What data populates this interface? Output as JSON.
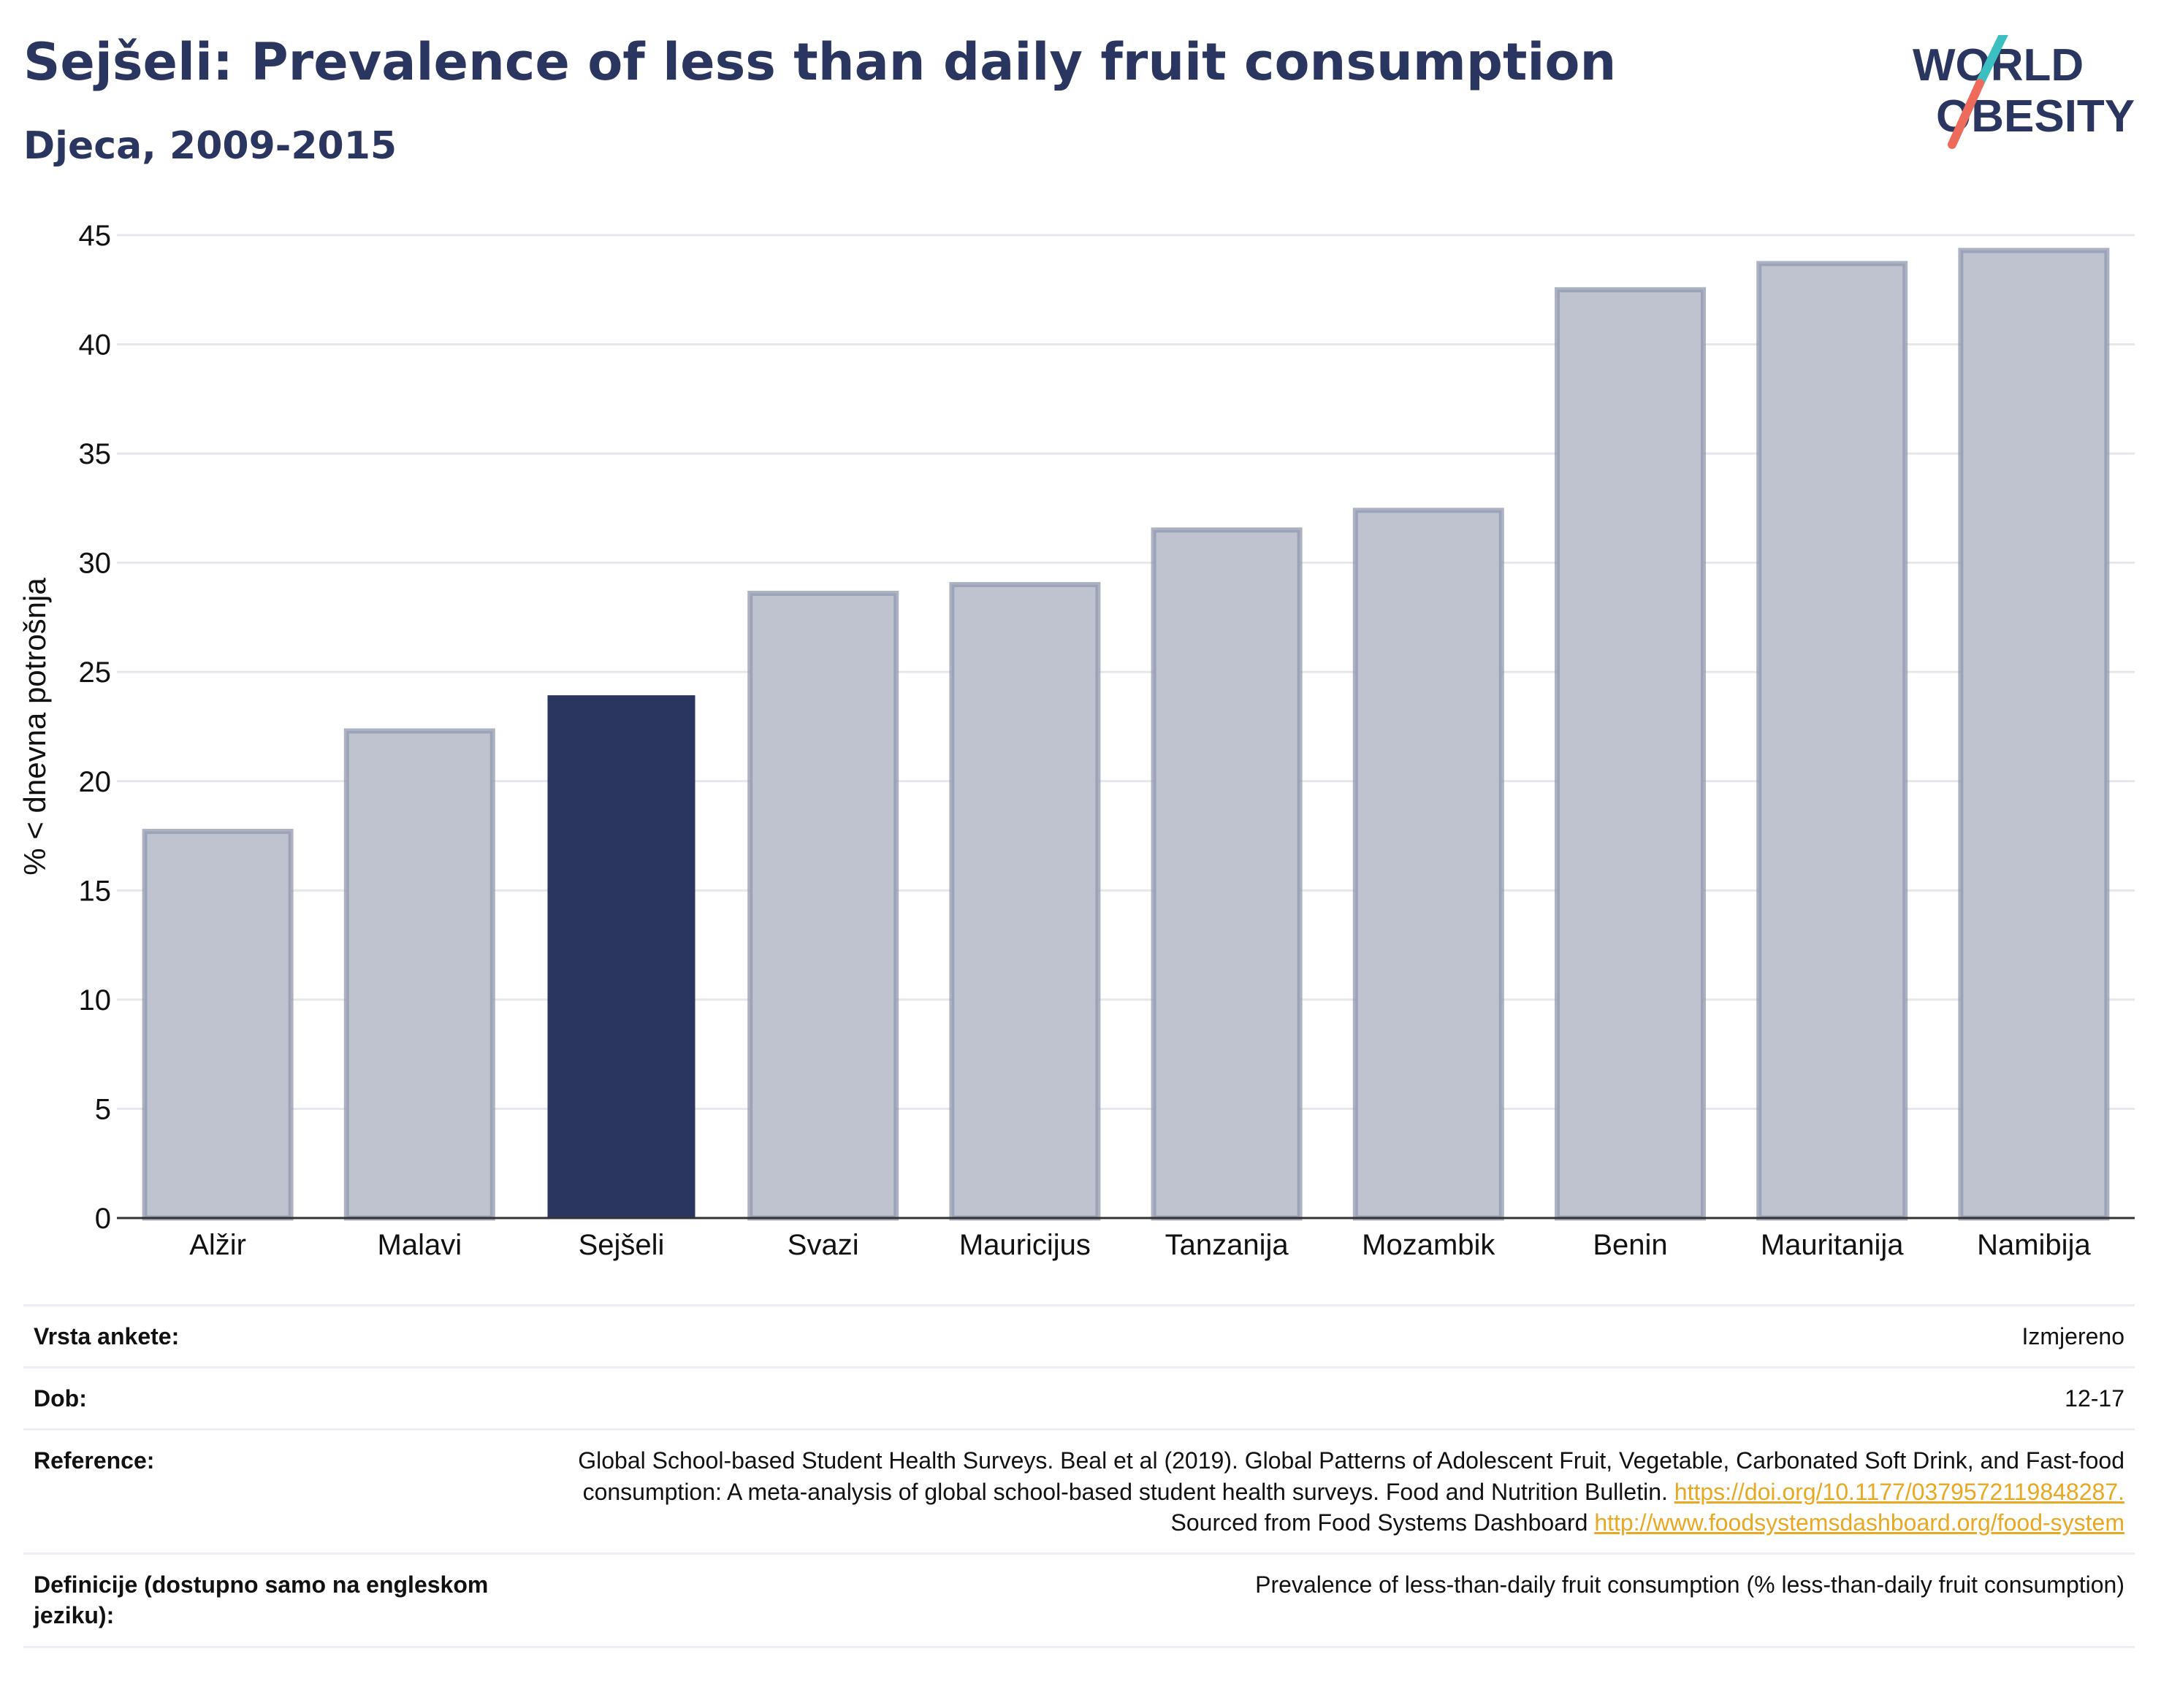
{
  "header": {
    "title": "Sejšeli: Prevalence of less than daily fruit consumption",
    "subtitle": "Djeca, 2009-2015",
    "logo_line1": "WORLD",
    "logo_line2": "OBESITY"
  },
  "colors": {
    "highlight": "#2a365f",
    "bar_fill": "#bfc3cf",
    "bar_stroke": "#9298ae",
    "grid": "#e6e7ec",
    "axis": "#333333",
    "logo_teal": "#3cbfc1",
    "logo_coral": "#ee6a5a",
    "link": "#e8a822"
  },
  "chart_data": {
    "type": "bar",
    "categories": [
      "Alžir",
      "Malavi",
      "Sejšeli",
      "Svazi",
      "Mauricijus",
      "Tanzanija",
      "Mozambik",
      "Benin",
      "Mauritanija",
      "Namibija"
    ],
    "values": [
      17.7,
      22.3,
      23.9,
      28.6,
      29.0,
      31.5,
      32.4,
      42.5,
      43.7,
      44.3
    ],
    "highlight": "Sejšeli",
    "ylabel": "% < dnevna potrošnja",
    "xlabel": "",
    "ylim": [
      0,
      45
    ],
    "yticks": [
      0,
      5,
      10,
      15,
      20,
      25,
      30,
      35,
      40,
      45
    ],
    "grid": true
  },
  "meta": {
    "survey_type_label": "Vrsta ankete:",
    "survey_type_value": "Izmjereno",
    "age_label": "Dob:",
    "age_value": "12-17",
    "reference_label": "Reference:",
    "reference_text_1": "Global School-based Student Health Surveys. Beal et al (2019). Global Patterns of Adolescent Fruit, Vegetable, Carbonated Soft Drink, and Fast-food consumption: A meta-analysis of global school-based student health surveys. Food and Nutrition Bulletin.",
    "reference_link_1": "https://doi.org/10.1177/0379572119848287.",
    "reference_text_2": "Sourced from Food Systems Dashboard",
    "reference_link_2": "http://www.foodsystemsdashboard.org/food-system",
    "definition_label": "Definicije (dostupno samo na engleskom jeziku):",
    "definition_value": "Prevalence of less-than-daily fruit consumption (% less-than-daily fruit consumption)"
  }
}
